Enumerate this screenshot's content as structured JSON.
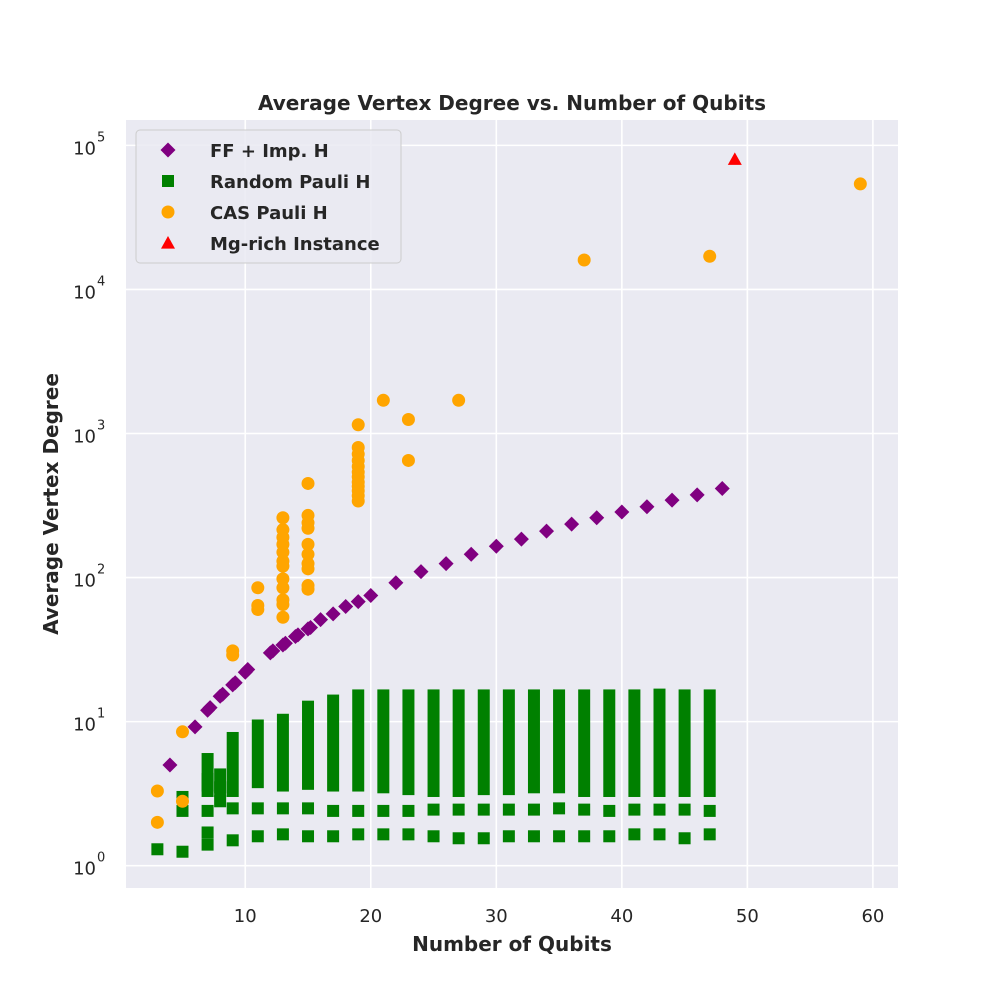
{
  "chart_data": {
    "type": "scatter",
    "title": "Average Vertex Degree vs. Number of Qubits",
    "xlabel": "Number of Qubits",
    "ylabel": "Average Vertex Degree",
    "xlim": [
      0.5,
      62
    ],
    "ylim": [
      0.7,
      150000
    ],
    "yscale": "log",
    "xticks": [
      10,
      20,
      30,
      40,
      50,
      60
    ],
    "yticks": [
      {
        "value": 1,
        "base": "10",
        "exp": "0"
      },
      {
        "value": 10,
        "base": "10",
        "exp": "1"
      },
      {
        "value": 100,
        "base": "10",
        "exp": "2"
      },
      {
        "value": 1000,
        "base": "10",
        "exp": "3"
      },
      {
        "value": 10000,
        "base": "10",
        "exp": "4"
      },
      {
        "value": 100000,
        "base": "10",
        "exp": "5"
      }
    ],
    "grid": true,
    "legend_position": "top-left",
    "background": "#EAEAF2",
    "series": [
      {
        "name": "FF + Imp. H",
        "marker": "diamond",
        "color": "#800080",
        "points": [
          [
            4,
            5
          ],
          [
            6,
            9.2
          ],
          [
            7,
            12
          ],
          [
            7.2,
            12.5
          ],
          [
            8,
            15
          ],
          [
            8.2,
            15.5
          ],
          [
            9,
            18
          ],
          [
            9.2,
            18.6
          ],
          [
            10,
            22
          ],
          [
            10.2,
            23
          ],
          [
            12,
            30
          ],
          [
            12.2,
            31
          ],
          [
            13,
            34
          ],
          [
            13.2,
            35
          ],
          [
            14,
            39
          ],
          [
            14.2,
            40
          ],
          [
            15,
            44
          ],
          [
            15.2,
            45
          ],
          [
            16,
            51
          ],
          [
            17,
            56
          ],
          [
            18,
            63
          ],
          [
            19,
            68
          ],
          [
            20,
            75
          ],
          [
            22,
            92
          ],
          [
            24,
            110
          ],
          [
            26,
            125
          ],
          [
            28,
            145
          ],
          [
            30,
            165
          ],
          [
            32,
            185
          ],
          [
            34,
            210
          ],
          [
            36,
            235
          ],
          [
            38,
            260
          ],
          [
            40,
            285
          ],
          [
            42,
            310
          ],
          [
            44,
            345
          ],
          [
            46,
            375
          ],
          [
            48,
            415
          ]
        ]
      },
      {
        "name": "Random Pauli H",
        "marker": "square",
        "color": "#008000",
        "points": [
          [
            3,
            1.3
          ],
          [
            5,
            1.25
          ],
          [
            7,
            1.4
          ],
          [
            7,
            1.7
          ],
          [
            9,
            1.5
          ],
          [
            11,
            1.6
          ],
          [
            13,
            1.65
          ],
          [
            15,
            1.6
          ],
          [
            17,
            1.6
          ],
          [
            19,
            1.65
          ],
          [
            21,
            1.65
          ],
          [
            23,
            1.65
          ],
          [
            25,
            1.6
          ],
          [
            27,
            1.55
          ],
          [
            29,
            1.55
          ],
          [
            31,
            1.6
          ],
          [
            33,
            1.6
          ],
          [
            35,
            1.6
          ],
          [
            37,
            1.6
          ],
          [
            39,
            1.6
          ],
          [
            41,
            1.65
          ],
          [
            43,
            1.65
          ],
          [
            45,
            1.55
          ],
          [
            47,
            1.65
          ],
          [
            5,
            2.4
          ],
          [
            5,
            3.0
          ],
          [
            7,
            2.4
          ],
          [
            7,
            3.3
          ],
          [
            7,
            4.0
          ],
          [
            8,
            2.8
          ],
          [
            8,
            3.5
          ],
          [
            9,
            2.5
          ],
          [
            11,
            2.5
          ],
          [
            13,
            2.5
          ],
          [
            15,
            2.5
          ],
          [
            17,
            2.4
          ],
          [
            19,
            2.4
          ],
          [
            21,
            2.4
          ],
          [
            23,
            2.4
          ],
          [
            25,
            2.45
          ],
          [
            27,
            2.45
          ],
          [
            29,
            2.45
          ],
          [
            31,
            2.45
          ],
          [
            33,
            2.45
          ],
          [
            35,
            2.5
          ],
          [
            37,
            2.45
          ],
          [
            39,
            2.4
          ],
          [
            41,
            2.45
          ],
          [
            43,
            2.45
          ],
          [
            45,
            2.45
          ],
          [
            47,
            2.4
          ]
        ],
        "bars": [
          [
            7,
            3.6,
            5.5
          ],
          [
            8,
            3.3,
            4.3
          ],
          [
            9,
            3.3,
            7.7
          ],
          [
            11,
            3.8,
            9.4
          ],
          [
            13,
            3.6,
            10.3
          ],
          [
            15,
            3.7,
            12.7
          ],
          [
            17,
            3.6,
            14
          ],
          [
            19,
            3.6,
            15.2
          ],
          [
            21,
            3.5,
            15.2
          ],
          [
            23,
            3.4,
            15.2
          ],
          [
            25,
            3.3,
            15.2
          ],
          [
            27,
            3.3,
            15.2
          ],
          [
            29,
            3.4,
            15.2
          ],
          [
            31,
            3.4,
            15.2
          ],
          [
            33,
            3.5,
            15.2
          ],
          [
            35,
            3.5,
            15.2
          ],
          [
            37,
            3.3,
            15.2
          ],
          [
            39,
            3.3,
            15.2
          ],
          [
            41,
            3.3,
            15.2
          ],
          [
            43,
            3.3,
            15.4
          ],
          [
            45,
            3.3,
            15.2
          ],
          [
            47,
            3.3,
            15.2
          ]
        ]
      },
      {
        "name": "CAS Pauli H",
        "marker": "circle",
        "color": "#FFA500",
        "points": [
          [
            3,
            2
          ],
          [
            3,
            3.3
          ],
          [
            5,
            2.8
          ],
          [
            5,
            8.5
          ],
          [
            9,
            29
          ],
          [
            9,
            31
          ],
          [
            11,
            60
          ],
          [
            11,
            64
          ],
          [
            11,
            85
          ],
          [
            13,
            53
          ],
          [
            13,
            65
          ],
          [
            13,
            70
          ],
          [
            13,
            85
          ],
          [
            13,
            98
          ],
          [
            13,
            120
          ],
          [
            13,
            130
          ],
          [
            13,
            150
          ],
          [
            13,
            170
          ],
          [
            13,
            190
          ],
          [
            13,
            215
          ],
          [
            13,
            260
          ],
          [
            15,
            83
          ],
          [
            15,
            88
          ],
          [
            15,
            115
          ],
          [
            15,
            125
          ],
          [
            15,
            145
          ],
          [
            15,
            170
          ],
          [
            15,
            220
          ],
          [
            15,
            240
          ],
          [
            15,
            270
          ],
          [
            15,
            450
          ],
          [
            19,
            340
          ],
          [
            19,
            370
          ],
          [
            19,
            400
          ],
          [
            19,
            430
          ],
          [
            19,
            460
          ],
          [
            19,
            500
          ],
          [
            19,
            540
          ],
          [
            19,
            590
          ],
          [
            19,
            650
          ],
          [
            19,
            720
          ],
          [
            19,
            800
          ],
          [
            19,
            1150
          ],
          [
            21,
            1700
          ],
          [
            23,
            650
          ],
          [
            23,
            1250
          ],
          [
            27,
            1700
          ],
          [
            37,
            16000
          ],
          [
            47,
            17000
          ],
          [
            59,
            54000
          ]
        ]
      },
      {
        "name": "Mg-rich Instance",
        "marker": "triangle",
        "color": "#FF0000",
        "points": [
          [
            49,
            80000
          ]
        ]
      }
    ]
  }
}
